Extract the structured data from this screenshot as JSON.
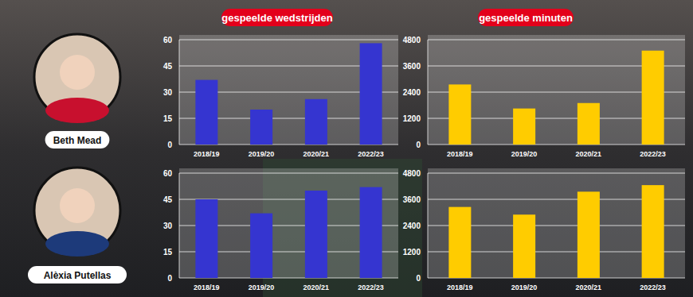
{
  "column_titles": [
    "gespeelde wedstrijden",
    "gespeelde minuten"
  ],
  "players": [
    "Beth Mead",
    "Alèxia Putellas"
  ],
  "chart_data": [
    {
      "type": "bar",
      "categories": [
        "2018/19",
        "2019/20",
        "2020/21",
        "2022/23"
      ],
      "values": [
        37,
        20,
        26,
        58
      ],
      "color": "#3535d0",
      "ylim": [
        0,
        60
      ],
      "yticks": [
        0,
        15,
        30,
        45,
        60
      ],
      "grid": true
    },
    {
      "type": "bar",
      "categories": [
        "2018/19",
        "2019/20",
        "2020/21",
        "2022/23"
      ],
      "values": [
        2750,
        1650,
        1900,
        4300
      ],
      "color": "#ffcc00",
      "ylim": [
        0,
        4800
      ],
      "yticks": [
        0,
        1200,
        2400,
        3600,
        4800
      ],
      "grid": true
    },
    {
      "type": "bar",
      "categories": [
        "2018/19",
        "2019/20",
        "2020/21",
        "2022/23"
      ],
      "values": [
        45,
        37,
        50,
        52
      ],
      "color": "#3535d0",
      "ylim": [
        0,
        60
      ],
      "yticks": [
        0,
        15,
        30,
        45,
        60
      ],
      "grid": true
    },
    {
      "type": "bar",
      "categories": [
        "2018/19",
        "2019/20",
        "2020/21",
        "2022/23"
      ],
      "values": [
        3250,
        2900,
        3950,
        4250
      ],
      "color": "#ffcc00",
      "ylim": [
        0,
        4800
      ],
      "yticks": [
        0,
        1200,
        2400,
        3600,
        4800
      ],
      "grid": true
    }
  ]
}
